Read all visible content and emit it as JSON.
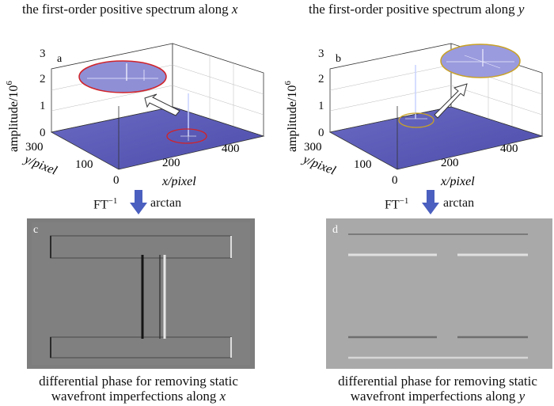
{
  "left": {
    "title": "the first-order positive spectrum along",
    "title_var": "x",
    "panel_label": "a",
    "z_label": "amplitude/10",
    "z_exp": "6",
    "z_ticks": [
      "0",
      "1",
      "2",
      "3"
    ],
    "x_label": "x/pixel",
    "x_ticks": [
      "0",
      "200",
      "400"
    ],
    "y_label": "y/pixel",
    "y_ticks": [
      "300",
      "100"
    ],
    "ellipse_color": "#d0232a"
  },
  "right": {
    "title": "the first-order positive spectrum along",
    "title_var": "y",
    "panel_label": "b",
    "z_label": "amplitude/10",
    "z_exp": "6",
    "z_ticks": [
      "0",
      "1",
      "2",
      "3"
    ],
    "x_label": "x/pixel",
    "x_ticks": [
      "0",
      "200",
      "400"
    ],
    "y_label": "y/pixel",
    "y_ticks": [
      "300",
      "100"
    ],
    "ellipse_color": "#c9a227"
  },
  "transform": {
    "ft": "FT",
    "ft_exp": "−1",
    "arctan": "arctan"
  },
  "phase_left": {
    "panel_label": "c",
    "caption_line1": "differential phase for removing static",
    "caption_line2": "wavefront imperfections along",
    "caption_var": "x"
  },
  "phase_right": {
    "panel_label": "d",
    "caption_line1": "differential phase for removing static",
    "caption_line2": "wavefront imperfections along",
    "caption_var": "y"
  },
  "colors": {
    "floor": "#5a5ab4",
    "arrow": "#4a5fbf",
    "phase_bg_c": "#7d7d7d",
    "phase_bg_d": "#a9a9a9"
  }
}
